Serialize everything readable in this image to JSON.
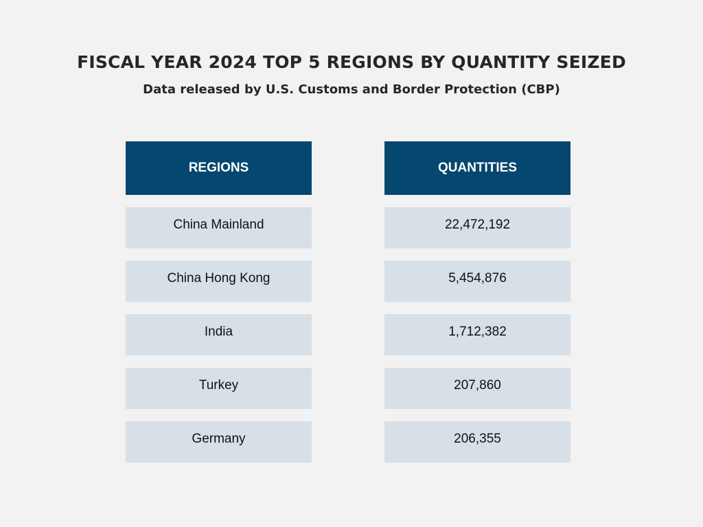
{
  "chart_data": {
    "type": "table",
    "title": "FISCAL YEAR 2024 TOP 5 REGIONS BY QUANTITY SEIZED",
    "subtitle": "Data released by U.S. Customs and Border Protection (CBP)",
    "columns": [
      "REGIONS",
      "QUANTITIES"
    ],
    "rows": [
      {
        "region": "China Mainland",
        "quantity": "22,472,192"
      },
      {
        "region": "China Hong Kong",
        "quantity": "5,454,876"
      },
      {
        "region": "India",
        "quantity": "1,712,382"
      },
      {
        "region": "Turkey",
        "quantity": "207,860"
      },
      {
        "region": "Germany",
        "quantity": "206,355"
      }
    ],
    "colors": {
      "background": "#f2f2f2",
      "header": "#05476e",
      "row": "#d7dfe7"
    }
  }
}
